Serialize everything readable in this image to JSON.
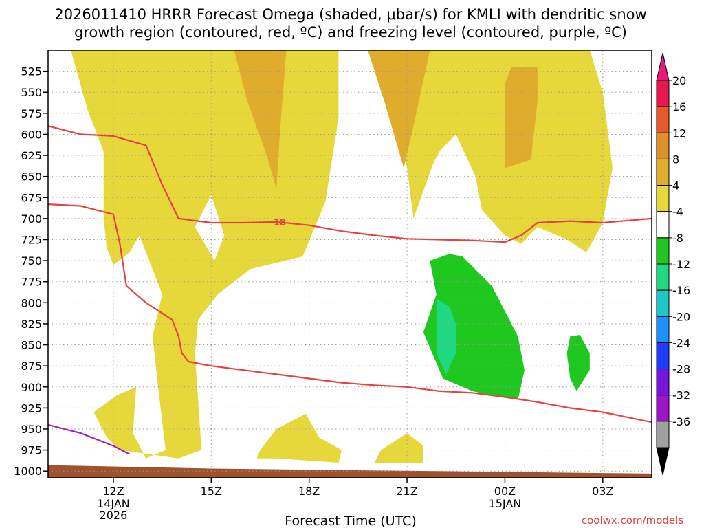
{
  "page": {
    "title_line1": "2026011410 HRRR Forecast Omega (shaded, μbar/s) for KMLI with dendritic snow",
    "title_line2": "growth region (contoured, red, ºC) and freezing level (contoured, purple, ºC)",
    "credit": "coolwx.com/models"
  },
  "chart_data": {
    "type": "time-height cross-section",
    "title": "2026011410 HRRR Forecast Omega (shaded, μbar/s) for KMLI with dendritic snow growth region (contoured, red, ºC) and freezing level (contoured, purple, ºC)",
    "xlabel": "Forecast Time (UTC)",
    "ylabel": "",
    "x_unit": "hours after 2026-01-14 10Z",
    "xlim": [
      0,
      18.5
    ],
    "ylim": [
      1008,
      500
    ],
    "y_ticks": [
      525,
      550,
      575,
      600,
      625,
      650,
      675,
      700,
      725,
      750,
      775,
      800,
      825,
      850,
      875,
      900,
      925,
      950,
      975,
      1000
    ],
    "x_ticks": [
      {
        "t": 2,
        "label": "12Z",
        "date1": "14JAN",
        "date2": "2026"
      },
      {
        "t": 5,
        "label": "15Z",
        "date1": "",
        "date2": ""
      },
      {
        "t": 8,
        "label": "18Z",
        "date1": "",
        "date2": ""
      },
      {
        "t": 11,
        "label": "21Z",
        "date1": "",
        "date2": ""
      },
      {
        "t": 14,
        "label": "00Z",
        "date1": "15JAN",
        "date2": ""
      },
      {
        "t": 17,
        "label": "03Z",
        "date1": "",
        "date2": ""
      }
    ],
    "grid": "dotted",
    "colorbar": {
      "labels": [
        "20",
        "16",
        "12",
        "8",
        "4",
        "-4",
        "-8",
        "-12",
        "-16",
        "-20",
        "-24",
        "-28",
        "-32",
        "-36"
      ],
      "colors": [
        "#e8184e",
        "#e85a2a",
        "#e0922a",
        "#e0ac2c",
        "#e6d83a",
        "#ffffff",
        "#1ec81e",
        "#1ed882",
        "#1ec8c8",
        "#1e90ff",
        "#1e3cff",
        "#7814dc",
        "#a014c8",
        "#a0a0a0"
      ],
      "over_color": "#e8187e",
      "under_color": "#000000"
    },
    "omega_regions": [
      {
        "name": "upward-4-8-main-left",
        "fill": "#e6d83a",
        "points": [
          [
            0.7,
            500
          ],
          [
            1.2,
            570
          ],
          [
            1.7,
            620
          ],
          [
            1.7,
            700
          ],
          [
            1.8,
            735
          ],
          [
            2.0,
            755
          ],
          [
            2.5,
            740
          ],
          [
            2.8,
            720
          ],
          [
            3.5,
            790
          ],
          [
            3.2,
            840
          ],
          [
            3.4,
            910
          ],
          [
            3.6,
            975
          ],
          [
            3.0,
            985
          ],
          [
            2.6,
            955
          ],
          [
            2.7,
            900
          ],
          [
            2.1,
            910
          ],
          [
            1.4,
            930
          ],
          [
            1.8,
            960
          ],
          [
            2.2,
            975
          ],
          [
            4.0,
            985
          ],
          [
            4.7,
            975
          ],
          [
            4.5,
            860
          ],
          [
            4.6,
            820
          ],
          [
            5.2,
            790
          ],
          [
            6.2,
            760
          ],
          [
            7.8,
            745
          ],
          [
            8.5,
            680
          ],
          [
            8.9,
            580
          ],
          [
            8.9,
            500
          ]
        ]
      },
      {
        "name": "upward-4-8-center",
        "fill": "#e6d83a",
        "points": [
          [
            8.9,
            500
          ],
          [
            9.5,
            500
          ],
          [
            10.0,
            600
          ],
          [
            10.6,
            680
          ],
          [
            11.0,
            725
          ],
          [
            11.2,
            700
          ],
          [
            11.8,
            635
          ],
          [
            12.0,
            620
          ],
          [
            12.8,
            655
          ],
          [
            13.3,
            690
          ],
          [
            14.0,
            720
          ],
          [
            14.5,
            730
          ],
          [
            15.0,
            710
          ],
          [
            15.9,
            725
          ],
          [
            16.5,
            740
          ],
          [
            17.0,
            705
          ],
          [
            17.3,
            640
          ],
          [
            17.0,
            550
          ],
          [
            16.6,
            500
          ]
        ]
      },
      {
        "name": "no-upward-gap-center",
        "fill": "#ffffff",
        "points": [
          [
            9.5,
            500
          ],
          [
            10.0,
            600
          ],
          [
            10.6,
            680
          ],
          [
            11.0,
            725
          ],
          [
            11.2,
            700
          ],
          [
            11.0,
            640
          ],
          [
            10.5,
            560
          ],
          [
            10.2,
            500
          ]
        ]
      },
      {
        "name": "no-upward-gap-mid",
        "fill": "#ffffff",
        "points": [
          [
            12.0,
            620
          ],
          [
            12.8,
            655
          ],
          [
            13.3,
            690
          ],
          [
            13.1,
            650
          ],
          [
            12.5,
            600
          ]
        ]
      },
      {
        "name": "clear-hole-upper-left",
        "fill": "#ffffff",
        "points": [
          [
            5.0,
            672
          ],
          [
            5.4,
            720
          ],
          [
            5.1,
            750
          ],
          [
            4.5,
            710
          ]
        ]
      },
      {
        "name": "upward-4-8-low-a",
        "fill": "#e6d83a",
        "points": [
          [
            6.5,
            975
          ],
          [
            7.0,
            950
          ],
          [
            7.9,
            932
          ],
          [
            8.3,
            960
          ],
          [
            9.0,
            975
          ],
          [
            8.9,
            990
          ],
          [
            7.0,
            985
          ],
          [
            6.4,
            985
          ]
        ]
      },
      {
        "name": "upward-4-8-low-b",
        "fill": "#e6d83a",
        "points": [
          [
            10.2,
            975
          ],
          [
            11.0,
            955
          ],
          [
            11.5,
            970
          ],
          [
            11.5,
            990
          ],
          [
            10.0,
            990
          ]
        ]
      },
      {
        "name": "upward-8-12-left",
        "fill": "#e0ac2c",
        "points": [
          [
            5.7,
            500
          ],
          [
            6.1,
            560
          ],
          [
            6.7,
            625
          ],
          [
            7.0,
            665
          ],
          [
            7.1,
            600
          ],
          [
            7.3,
            500
          ]
        ]
      },
      {
        "name": "upward-8-12-center",
        "fill": "#e0ac2c",
        "points": [
          [
            9.8,
            500
          ],
          [
            10.3,
            560
          ],
          [
            10.9,
            640
          ],
          [
            11.2,
            590
          ],
          [
            11.7,
            500
          ]
        ]
      },
      {
        "name": "upward-8-12-right",
        "fill": "#e0ac2c",
        "points": [
          [
            14.0,
            540
          ],
          [
            14.0,
            600
          ],
          [
            14.0,
            640
          ],
          [
            14.8,
            630
          ],
          [
            15.0,
            560
          ],
          [
            15.0,
            520
          ],
          [
            14.2,
            520
          ]
        ]
      },
      {
        "name": "downward-4-8-green",
        "fill": "#1ec81e",
        "points": [
          [
            11.7,
            750
          ],
          [
            11.9,
            790
          ],
          [
            11.5,
            835
          ],
          [
            12.1,
            890
          ],
          [
            13.0,
            905
          ],
          [
            13.6,
            910
          ],
          [
            14.4,
            915
          ],
          [
            14.6,
            880
          ],
          [
            14.4,
            840
          ],
          [
            13.6,
            780
          ],
          [
            12.7,
            745
          ],
          [
            12.3,
            742
          ]
        ]
      },
      {
        "name": "downward-8-12-teal",
        "fill": "#1ed882",
        "points": [
          [
            11.9,
            795
          ],
          [
            11.9,
            860
          ],
          [
            12.2,
            885
          ],
          [
            12.5,
            860
          ],
          [
            12.5,
            825
          ],
          [
            12.3,
            805
          ]
        ]
      },
      {
        "name": "downward-4-8-green-small",
        "fill": "#1ec81e",
        "points": [
          [
            16.0,
            840
          ],
          [
            16.3,
            838
          ],
          [
            16.6,
            860
          ],
          [
            16.6,
            880
          ],
          [
            16.2,
            905
          ],
          [
            16.0,
            890
          ],
          [
            15.9,
            860
          ]
        ]
      },
      {
        "name": "terrain-ground",
        "fill": "#a0522d",
        "points": [
          [
            0,
            993
          ],
          [
            5,
            997
          ],
          [
            18.5,
            1003
          ],
          [
            18.5,
            1008
          ],
          [
            0,
            1008
          ]
        ]
      }
    ],
    "contours": [
      {
        "name": "dgz-upper-contour",
        "color": "#e84040",
        "label": "18",
        "label_t": 7.1,
        "label_p": 704,
        "points": [
          [
            0,
            590
          ],
          [
            1.0,
            600
          ],
          [
            2.0,
            602
          ],
          [
            3.0,
            613
          ],
          [
            3.5,
            660
          ],
          [
            4.0,
            700
          ],
          [
            5.0,
            705
          ],
          [
            6.0,
            705
          ],
          [
            7.0,
            704
          ],
          [
            8.0,
            708
          ],
          [
            9.0,
            715
          ],
          [
            10.0,
            720
          ],
          [
            11.0,
            724
          ],
          [
            12.0,
            725
          ],
          [
            13.0,
            726
          ],
          [
            14.0,
            728
          ],
          [
            14.5,
            720
          ],
          [
            15.0,
            705
          ],
          [
            16.0,
            703
          ],
          [
            17.0,
            705
          ],
          [
            18.5,
            700
          ]
        ]
      },
      {
        "name": "dgz-lower-contour",
        "color": "#e84040",
        "points": [
          [
            0,
            683
          ],
          [
            1.0,
            685
          ],
          [
            2.0,
            695
          ],
          [
            2.2,
            730
          ],
          [
            2.4,
            780
          ],
          [
            3.0,
            800
          ],
          [
            3.8,
            820
          ],
          [
            4.0,
            840
          ],
          [
            4.1,
            860
          ],
          [
            4.3,
            870
          ],
          [
            5.0,
            875
          ],
          [
            6.0,
            880
          ],
          [
            7.0,
            885
          ],
          [
            8.0,
            890
          ],
          [
            9.0,
            895
          ],
          [
            10.0,
            898
          ],
          [
            11.0,
            900
          ],
          [
            12.0,
            905
          ],
          [
            13.0,
            907
          ],
          [
            14.0,
            912
          ],
          [
            15.0,
            918
          ],
          [
            16.0,
            925
          ],
          [
            17.0,
            930
          ],
          [
            18.5,
            942
          ]
        ]
      },
      {
        "name": "freezing-level-contour",
        "color": "#a020c0",
        "points": [
          [
            0,
            945
          ],
          [
            1.0,
            955
          ],
          [
            2.0,
            970
          ],
          [
            2.5,
            980
          ]
        ]
      }
    ]
  }
}
